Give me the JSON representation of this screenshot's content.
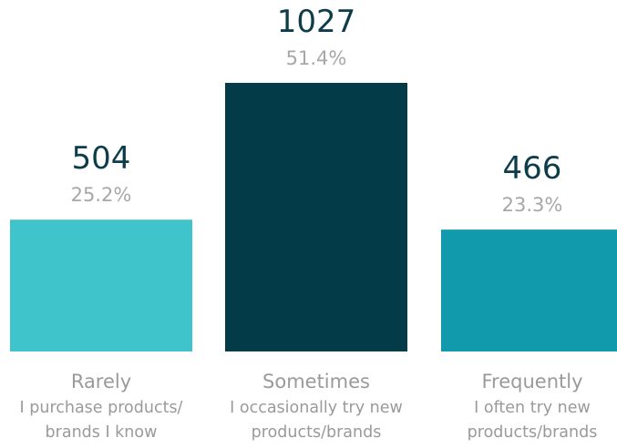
{
  "chart_data": {
    "type": "bar",
    "categories": [
      {
        "title": "Rarely",
        "subtitle": [
          "I purchase products/",
          "brands I know"
        ]
      },
      {
        "title": "Sometimes",
        "subtitle": [
          "I occasionally try new",
          "products/brands"
        ]
      },
      {
        "title": "Frequently",
        "subtitle": [
          "I often try new",
          "products/brands"
        ]
      }
    ],
    "values": [
      504,
      1027,
      466
    ],
    "percent_labels": [
      "25.2%",
      "51.4%",
      "23.3%"
    ],
    "colors": [
      "#40c4cc",
      "#033b48",
      "#109aac"
    ],
    "ylim": [
      0,
      1027
    ],
    "grid": false,
    "legend": "none"
  }
}
